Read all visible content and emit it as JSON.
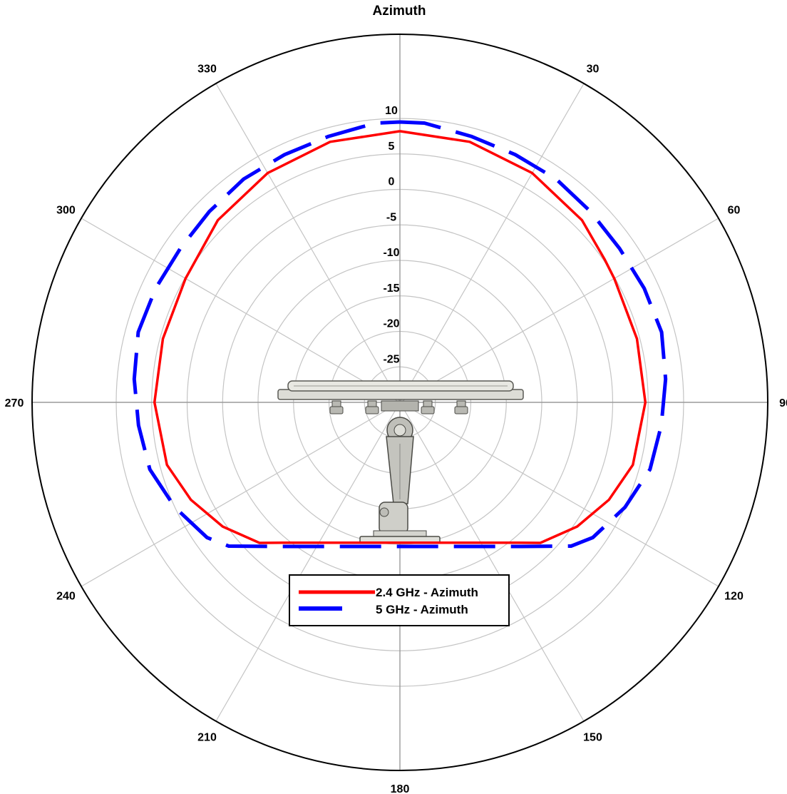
{
  "chart_data": {
    "type": "polar-line",
    "title": "Azimuth",
    "angle_labels": [
      "30",
      "60",
      "90",
      "120",
      "150",
      "180",
      "210",
      "240",
      "270",
      "300",
      "330"
    ],
    "angle_values": [
      30,
      60,
      90,
      120,
      150,
      180,
      210,
      240,
      270,
      300,
      330
    ],
    "radial_ticks": [
      "10",
      "5",
      "0",
      "-5",
      "-10",
      "-15",
      "-20",
      "-25"
    ],
    "radial_values": [
      10,
      5,
      0,
      -5,
      -10,
      -15,
      -20,
      -25
    ],
    "rlim": [
      -30,
      10
    ],
    "grid": true,
    "legend_position": "bottom-center",
    "series": [
      {
        "name": "2.4 GHz - Azimuth",
        "color": "#ff0000",
        "line_style": "solid",
        "points": [
          [
            0,
            8.2
          ],
          [
            15,
            8.0
          ],
          [
            30,
            7.3
          ],
          [
            45,
            6.3
          ],
          [
            55,
            5.2
          ],
          [
            60,
            4.9
          ],
          [
            75,
            4.6
          ],
          [
            90,
            4.6
          ],
          [
            105,
            4.0
          ],
          [
            115,
            2.5
          ],
          [
            125,
            0.5
          ],
          [
            135,
            -2.0
          ],
          [
            140,
            -4.2
          ],
          [
            220,
            -4.2
          ],
          [
            225,
            -2.0
          ],
          [
            235,
            0.5
          ],
          [
            245,
            2.5
          ],
          [
            255,
            4.0
          ],
          [
            270,
            4.6
          ],
          [
            285,
            4.6
          ],
          [
            300,
            4.9
          ],
          [
            315,
            6.3
          ],
          [
            330,
            7.3
          ],
          [
            345,
            8.0
          ],
          [
            360,
            8.2
          ]
        ]
      },
      {
        "name": "5 GHz - Azimuth",
        "color": "#0000ff",
        "line_style": "dashed",
        "points": [
          [
            0,
            9.5
          ],
          [
            5,
            9.5
          ],
          [
            15,
            8.8
          ],
          [
            25,
            8.5
          ],
          [
            35,
            8.4
          ],
          [
            45,
            8.0
          ],
          [
            55,
            7.8
          ],
          [
            65,
            8.0
          ],
          [
            75,
            8.2
          ],
          [
            85,
            7.6
          ],
          [
            95,
            7.0
          ],
          [
            105,
            6.5
          ],
          [
            115,
            5.0
          ],
          [
            125,
            3.2
          ],
          [
            130,
            1.5
          ],
          [
            140,
            -3.5
          ],
          [
            220,
            -3.5
          ],
          [
            230,
            1.5
          ],
          [
            235,
            3.2
          ],
          [
            245,
            5.0
          ],
          [
            255,
            6.5
          ],
          [
            265,
            7.0
          ],
          [
            275,
            7.6
          ],
          [
            285,
            8.2
          ],
          [
            295,
            8.0
          ],
          [
            305,
            7.8
          ],
          [
            315,
            8.0
          ],
          [
            325,
            8.4
          ],
          [
            335,
            8.5
          ],
          [
            345,
            8.8
          ],
          [
            355,
            9.5
          ],
          [
            360,
            9.5
          ]
        ]
      }
    ]
  }
}
